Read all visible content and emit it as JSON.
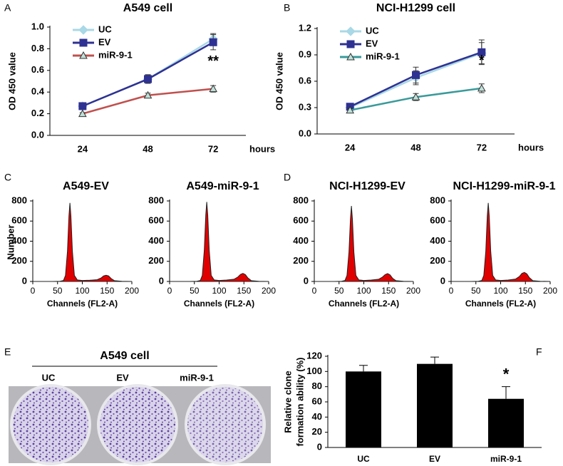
{
  "panel_labels": [
    "A",
    "B",
    "C",
    "D",
    "E",
    "F"
  ],
  "plate_image": {
    "title": "A549 cell",
    "labels": [
      "UC",
      "EV",
      "miR-9-1"
    ]
  },
  "chart_data": [
    {
      "type": "line",
      "title": "A549 cell",
      "ylabel": "OD 450 value",
      "xlabel": "hours",
      "categories": [
        "24",
        "48",
        "72"
      ],
      "ylim": [
        0,
        1
      ],
      "yticks": [
        {
          "value": 0,
          "label": "0.0"
        },
        0.2,
        0.4,
        0.6,
        0.8,
        {
          "value": 1,
          "label": "1.0"
        }
      ],
      "legend": "upper left",
      "annotation": "**",
      "series": [
        {
          "name": "UC",
          "color": "#a9d8e6",
          "marker": "diamond",
          "values": [
            0.27,
            0.52,
            0.89
          ],
          "errors": [
            0.02,
            0.04,
            0.05
          ]
        },
        {
          "name": "EV",
          "color": "#2e3192",
          "marker": "square",
          "values": [
            0.27,
            0.52,
            0.86
          ],
          "errors": [
            0.02,
            0.04,
            0.07
          ]
        },
        {
          "name": "miR-9-1",
          "color": "#c0504d",
          "marker": "triangle",
          "values": [
            0.2,
            0.37,
            0.43
          ],
          "errors": [
            0.01,
            0.02,
            0.03
          ]
        }
      ]
    },
    {
      "type": "line",
      "title": "NCI-H1299 cell",
      "ylabel": "OD 450 value",
      "xlabel": "hours",
      "categories": [
        "24",
        "48",
        "72"
      ],
      "ylim": [
        0,
        1.2
      ],
      "yticks": [
        {
          "value": 0,
          "label": "0.0"
        },
        0.3,
        0.6,
        0.9,
        1.2
      ],
      "legend": "upper left",
      "annotation": "*",
      "series": [
        {
          "name": "UC",
          "color": "#a9d8e6",
          "marker": "diamond",
          "values": [
            0.3,
            0.64,
            0.92
          ],
          "errors": [
            0.03,
            0.08,
            0.12
          ]
        },
        {
          "name": "EV",
          "color": "#2e3192",
          "marker": "square",
          "values": [
            0.31,
            0.67,
            0.93
          ],
          "errors": [
            0.03,
            0.09,
            0.14
          ]
        },
        {
          "name": "miR-9-1",
          "color": "#3a9a9a",
          "marker": "triangle",
          "values": [
            0.27,
            0.42,
            0.52
          ],
          "errors": [
            0.02,
            0.04,
            0.05
          ]
        }
      ]
    },
    {
      "type": "area",
      "title": "A549-EV",
      "ylabel": "Number",
      "xlabel": "Channels (FL2-A)",
      "color": "#e00000",
      "xlim": [
        0,
        200
      ],
      "xticks": [
        0,
        50,
        100,
        150,
        200
      ],
      "ylim": [
        0,
        800
      ],
      "yticks": [
        0,
        200,
        400,
        600,
        800
      ],
      "x": [
        0,
        40,
        55,
        62,
        66,
        70,
        73,
        75,
        77,
        80,
        84,
        90,
        100,
        115,
        130,
        138,
        143,
        148,
        153,
        158,
        165,
        180,
        200
      ],
      "values": [
        0,
        0,
        2,
        10,
        60,
        300,
        650,
        780,
        650,
        300,
        60,
        15,
        10,
        12,
        18,
        35,
        55,
        62,
        55,
        30,
        8,
        2,
        0
      ]
    },
    {
      "type": "area",
      "title": "A549-miR-9-1",
      "xlabel": "Channels (FL2-A)",
      "color": "#e00000",
      "xlim": [
        0,
        200
      ],
      "xticks": [
        0,
        50,
        100,
        150,
        200
      ],
      "ylim": [
        0,
        800
      ],
      "yticks": [
        0,
        200,
        400,
        600,
        800
      ],
      "x": [
        0,
        40,
        55,
        62,
        66,
        70,
        73,
        75,
        77,
        80,
        84,
        90,
        100,
        115,
        130,
        138,
        143,
        148,
        153,
        158,
        165,
        180,
        200
      ],
      "values": [
        0,
        0,
        2,
        10,
        60,
        310,
        660,
        790,
        660,
        310,
        60,
        15,
        10,
        14,
        22,
        45,
        70,
        80,
        68,
        35,
        8,
        2,
        0
      ]
    },
    {
      "type": "area",
      "title": "NCI-H1299-EV",
      "xlabel": "Channels (FL2-A)",
      "color": "#e00000",
      "xlim": [
        0,
        200
      ],
      "xticks": [
        0,
        50,
        100,
        150,
        200
      ],
      "ylim": [
        0,
        800
      ],
      "yticks": [
        0,
        200,
        400,
        600,
        800
      ],
      "x": [
        0,
        40,
        55,
        62,
        66,
        70,
        73,
        75,
        77,
        80,
        84,
        90,
        100,
        115,
        130,
        138,
        143,
        148,
        153,
        158,
        165,
        180,
        200
      ],
      "values": [
        0,
        0,
        2,
        10,
        60,
        290,
        620,
        750,
        620,
        290,
        60,
        15,
        10,
        14,
        22,
        45,
        68,
        78,
        65,
        32,
        8,
        2,
        0
      ]
    },
    {
      "type": "area",
      "title": "NCI-H1299-miR-9-1",
      "xlabel": "Channels (FL2-A)",
      "color": "#e00000",
      "xlim": [
        0,
        200
      ],
      "xticks": [
        0,
        50,
        100,
        150,
        200
      ],
      "ylim": [
        0,
        800
      ],
      "yticks": [
        0,
        200,
        400,
        600,
        800
      ],
      "x": [
        0,
        40,
        55,
        62,
        66,
        70,
        73,
        75,
        77,
        80,
        84,
        90,
        100,
        115,
        130,
        138,
        143,
        148,
        153,
        158,
        165,
        180,
        200
      ],
      "values": [
        0,
        0,
        2,
        10,
        60,
        300,
        650,
        780,
        650,
        300,
        60,
        15,
        10,
        14,
        24,
        50,
        80,
        90,
        75,
        38,
        8,
        2,
        0
      ]
    },
    {
      "type": "bar",
      "ylabel": [
        "Relative clone",
        "formation ability (%)"
      ],
      "color": "#000000",
      "categories": [
        "UC",
        "EV",
        "miR-9-1"
      ],
      "values": [
        100,
        110,
        64
      ],
      "errors": [
        8,
        9,
        16
      ],
      "ylim": [
        0,
        120
      ],
      "yticks": [
        0,
        20,
        40,
        60,
        80,
        100,
        120
      ],
      "annotation": "*"
    }
  ]
}
